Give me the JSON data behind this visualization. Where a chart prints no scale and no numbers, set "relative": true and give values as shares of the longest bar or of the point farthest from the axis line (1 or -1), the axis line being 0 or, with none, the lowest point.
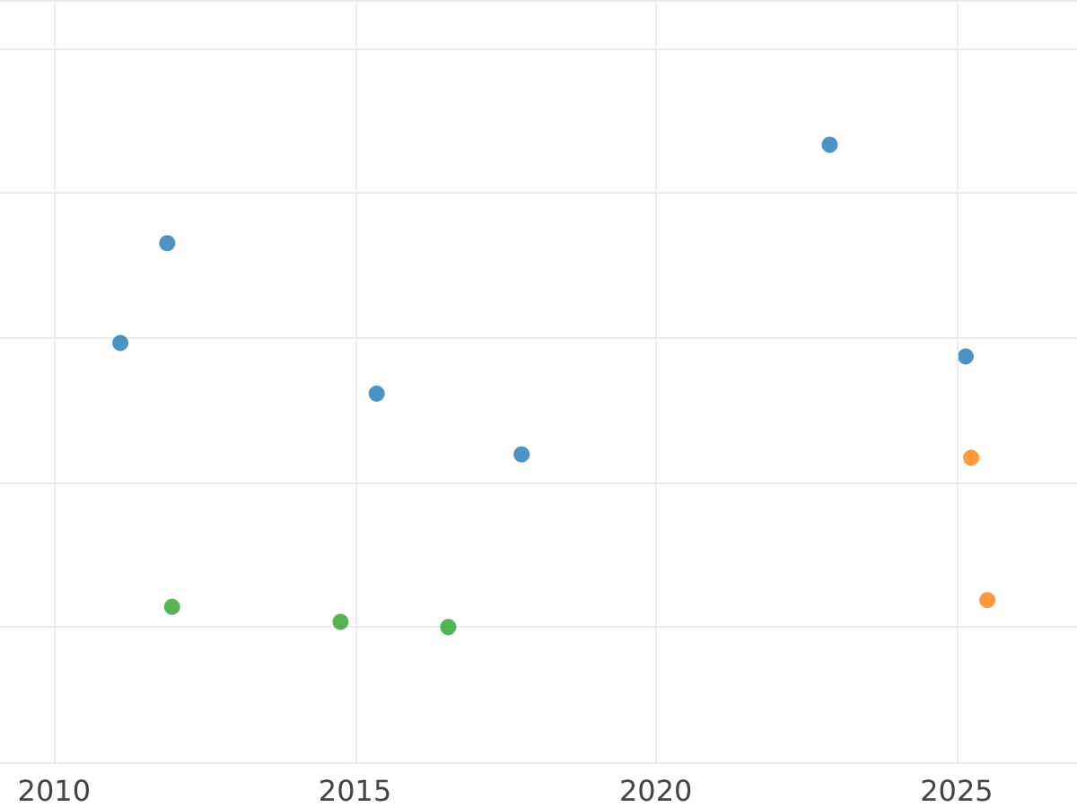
{
  "chart_data": {
    "type": "scatter",
    "relative": true,
    "xlim": [
      2009.1,
      2027
    ],
    "xticks": [
      2010,
      2015,
      2020,
      2025
    ],
    "grid": true,
    "marker": "circle",
    "series": [
      {
        "color": "#1f77b4",
        "x": [
          2011.1,
          2011.88,
          2015.36,
          2017.77,
          2022.89,
          2025.15
        ],
        "values": [
          0.589,
          0.796,
          0.484,
          0.358,
          1,
          0.561
        ]
      },
      {
        "color": "#ff7f0e",
        "x": [
          2025.24,
          2025.51
        ],
        "values": [
          0.351,
          0.056
        ]
      },
      {
        "color": "#2ca02c",
        "x": [
          2011.96,
          2014.76,
          2016.55
        ],
        "values": [
          0.042,
          0.011,
          0
        ]
      }
    ]
  }
}
